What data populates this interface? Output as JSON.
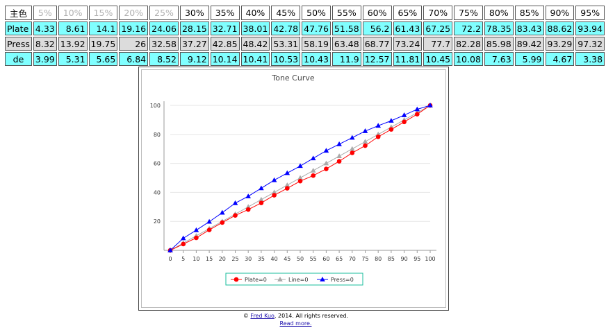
{
  "table": {
    "corner": "主色",
    "headers": [
      "5%",
      "10%",
      "15%",
      "20%",
      "25%",
      "30%",
      "35%",
      "40%",
      "45%",
      "50%",
      "55%",
      "60%",
      "65%",
      "70%",
      "75%",
      "80%",
      "85%",
      "90%",
      "95%"
    ],
    "dim_count": 5,
    "rows": [
      {
        "label": "Plate",
        "values": [
          "4.33",
          "8.61",
          "14.1",
          "19.16",
          "24.06",
          "28.15",
          "32.71",
          "38.01",
          "42.78",
          "47.76",
          "51.58",
          "56.2",
          "61.43",
          "67.25",
          "72.2",
          "78.35",
          "83.43",
          "88.62",
          "93.94"
        ]
      },
      {
        "label": "Press",
        "values": [
          "8.32",
          "13.92",
          "19.75",
          "26",
          "32.58",
          "37.27",
          "42.85",
          "48.42",
          "53.31",
          "58.19",
          "63.48",
          "68.77",
          "73.24",
          "77.7",
          "82.28",
          "85.98",
          "89.42",
          "93.29",
          "97.32"
        ]
      },
      {
        "label": "de",
        "values": [
          "3.99",
          "5.31",
          "5.65",
          "6.84",
          "8.52",
          "9.12",
          "10.14",
          "10.41",
          "10.53",
          "10.43",
          "11.9",
          "12.57",
          "11.81",
          "10.45",
          "10.08",
          "7.63",
          "5.99",
          "4.67",
          "3.38"
        ]
      }
    ]
  },
  "chart_data": {
    "type": "line",
    "title": "Tone Curve",
    "x": [
      0,
      5,
      10,
      15,
      20,
      25,
      30,
      35,
      40,
      45,
      50,
      55,
      60,
      65,
      70,
      75,
      80,
      85,
      90,
      95,
      100
    ],
    "xlim": [
      0,
      100
    ],
    "ylim": [
      0,
      100
    ],
    "yticks": [
      20,
      40,
      60,
      80,
      100
    ],
    "grid": true,
    "legend_position": "bottom-center",
    "series": [
      {
        "name": "Plate=0",
        "color": "#ff0000",
        "marker": "circle",
        "values": [
          0,
          4.33,
          8.61,
          14.1,
          19.16,
          24.06,
          28.15,
          32.71,
          38.01,
          42.78,
          47.76,
          51.58,
          56.2,
          61.43,
          67.25,
          72.2,
          78.35,
          83.43,
          88.62,
          93.94,
          100
        ]
      },
      {
        "name": "Line=0",
        "color": "#aaaaaa",
        "marker": "triangle",
        "values": [
          0,
          5,
          10,
          15,
          20,
          25,
          30,
          35,
          40,
          45,
          50,
          55,
          60,
          65,
          70,
          75,
          80,
          85,
          90,
          95,
          100
        ]
      },
      {
        "name": "Press=0",
        "color": "#0000ff",
        "marker": "triangle",
        "values": [
          0,
          8.32,
          13.92,
          19.75,
          26,
          32.58,
          37.27,
          42.85,
          48.42,
          53.31,
          58.19,
          63.48,
          68.77,
          73.24,
          77.7,
          82.28,
          85.98,
          89.42,
          93.29,
          97.32,
          100
        ]
      }
    ]
  },
  "footer": {
    "copyright_symbol": "©",
    "author_link": "Fred Kuo",
    "copyright_text": ", 2014. All rights reserved.",
    "read_more": "Read more."
  }
}
